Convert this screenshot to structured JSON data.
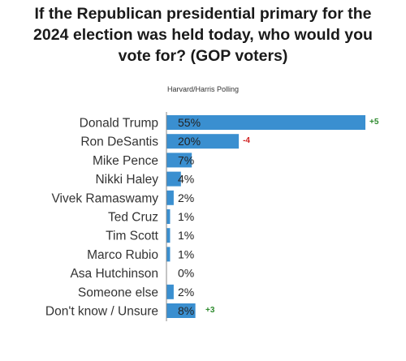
{
  "colors": {
    "bar": "#3a8fd0",
    "axis": "#888888",
    "change_positive": "#2e8b2e",
    "change_negative": "#d02020"
  },
  "chart_data": {
    "type": "bar",
    "orientation": "horizontal",
    "title_lines": [
      "If the Republican presidential primary for the",
      "2024 election was held today, who would you",
      "vote for? (GOP voters)"
    ],
    "source": "Harvard/Harris Polling",
    "categories": [
      "Donald Trump",
      "Ron DeSantis",
      "Mike Pence",
      "Nikki Haley",
      "Vivek Ramaswamy",
      "Ted Cruz",
      "Tim Scott",
      "Marco Rubio",
      "Asa Hutchinson",
      "Someone else",
      "Don't know / Unsure"
    ],
    "values": [
      55,
      20,
      7,
      4,
      2,
      1,
      1,
      1,
      0,
      2,
      8
    ],
    "value_labels": [
      "55%",
      "20%",
      "7%",
      "4%",
      "2%",
      "1%",
      "1%",
      "1%",
      "0%",
      "2%",
      "8%"
    ],
    "changes": [
      "+5",
      "-4",
      "",
      "",
      "",
      "",
      "",
      "",
      "",
      "",
      "+3"
    ],
    "xlim": [
      0,
      55
    ],
    "grid": false,
    "legend": "none"
  }
}
